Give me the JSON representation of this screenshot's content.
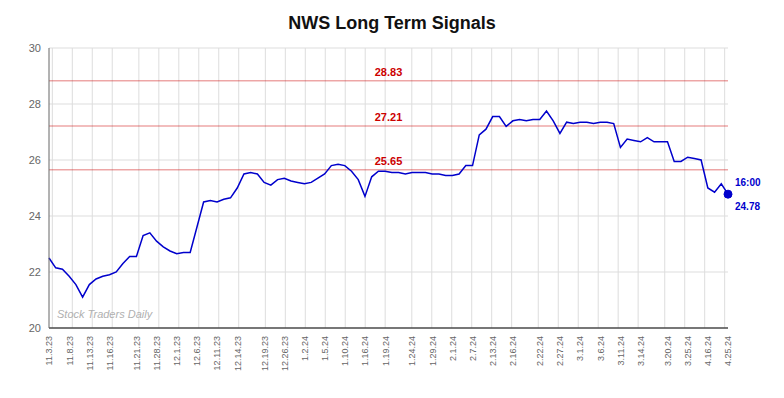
{
  "chart_data": {
    "type": "line",
    "title": "NWS Long Term Signals",
    "categories": [
      "11.3.23",
      null,
      null,
      "11.8.23",
      null,
      null,
      "11.13.23",
      null,
      null,
      "11.16.23",
      null,
      null,
      null,
      "11.21.23",
      null,
      null,
      "11.28.23",
      null,
      null,
      "12.1.23",
      null,
      null,
      "12.6.23",
      null,
      null,
      "12.11.23",
      null,
      null,
      "12.14.23",
      null,
      null,
      null,
      "12.19.23",
      null,
      null,
      "12.26.23",
      null,
      null,
      "1.2.24",
      null,
      null,
      "1.5.24",
      null,
      null,
      "1.10.24",
      null,
      null,
      "1.16.24",
      null,
      null,
      "1.19.24",
      null,
      null,
      null,
      "1.24.24",
      null,
      null,
      "1.29.24",
      null,
      null,
      "2.1.24",
      null,
      null,
      "2.7.24",
      null,
      null,
      "2.13.24",
      null,
      null,
      "2.16.24",
      null,
      null,
      null,
      "2.22.24",
      null,
      null,
      "2.27.24",
      null,
      null,
      "3.1.24",
      null,
      null,
      "3.6.24",
      null,
      null,
      "3.11.24",
      null,
      null,
      "3.14.24",
      null,
      null,
      null,
      "3.20.24",
      null,
      null,
      "3.25.24",
      null,
      null,
      "4.16.24",
      null,
      null,
      "4.25.24"
    ],
    "series": [
      {
        "color": "#0000cc",
        "values": [
          22.5,
          22.15,
          22.1,
          21.85,
          21.55,
          21.1,
          21.55,
          21.75,
          21.85,
          21.9,
          22.0,
          22.3,
          22.55,
          22.55,
          23.3,
          23.4,
          23.1,
          22.9,
          22.75,
          22.65,
          22.7,
          22.7,
          23.6,
          24.5,
          24.55,
          24.5,
          24.6,
          24.65,
          25.0,
          25.5,
          25.55,
          25.5,
          25.2,
          25.1,
          25.3,
          25.35,
          25.25,
          25.2,
          25.15,
          25.2,
          25.35,
          25.5,
          25.8,
          25.85,
          25.8,
          25.6,
          25.3,
          24.7,
          25.4,
          25.6,
          25.6,
          25.55,
          25.55,
          25.5,
          25.55,
          25.55,
          25.55,
          25.5,
          25.5,
          25.45,
          25.45,
          25.5,
          25.8,
          25.8,
          26.9,
          27.1,
          27.55,
          27.55,
          27.2,
          27.4,
          27.45,
          27.4,
          27.45,
          27.45,
          27.75,
          27.4,
          26.95,
          27.35,
          27.3,
          27.35,
          27.35,
          27.3,
          27.35,
          27.35,
          27.3,
          26.45,
          26.75,
          26.7,
          26.65,
          26.8,
          26.65,
          26.65,
          26.65,
          25.95,
          25.95,
          26.1,
          26.05,
          26.0,
          25.0,
          24.85,
          25.15,
          24.78
        ]
      }
    ],
    "ylim": [
      20,
      30
    ],
    "yticks": [
      20,
      22,
      24,
      26,
      28,
      30
    ],
    "grid": true,
    "annotations": [
      {
        "type": "hline",
        "y": 28.83,
        "text": "28.83",
        "color": "#cc0000"
      },
      {
        "type": "hline",
        "y": 27.21,
        "text": "27.21",
        "color": "#cc0000"
      },
      {
        "type": "hline",
        "y": 25.65,
        "text": "25.65",
        "color": "#cc0000"
      },
      {
        "type": "point",
        "text": "16:00",
        "color": "#0000cc"
      },
      {
        "type": "point",
        "text": "24.78",
        "color": "#0000cc"
      },
      {
        "type": "watermark",
        "text": "Stock Traders Daily",
        "color": "#b0b0b0"
      }
    ]
  }
}
